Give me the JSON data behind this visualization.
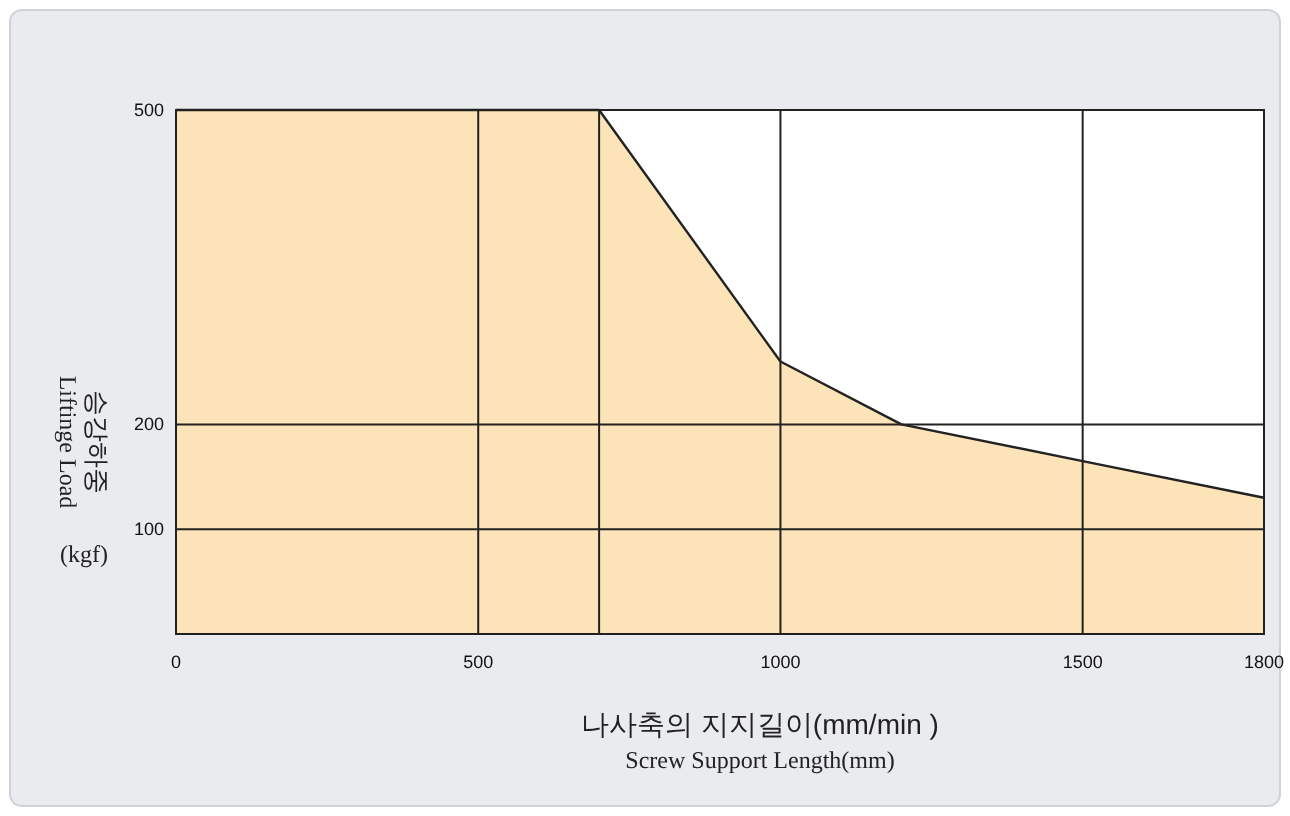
{
  "chart_data": {
    "type": "area",
    "xlabel": "나사축의 지지길이(mm/min )",
    "subtitle": "Screw Support Length(mm)",
    "ylabel": "승강하중",
    "y2label": "Liftinge Load",
    "legend_title": "(kgf)",
    "x": [
      0,
      700,
      1000,
      1200,
      1500,
      1800
    ],
    "series": [
      {
        "color": "#fde3b8",
        "values": [
          500,
          500,
          260,
          200,
          165,
          130
        ]
      }
    ],
    "xlim": [
      0,
      1800
    ],
    "ylim": [
      0,
      500
    ],
    "xticks": [
      0,
      500,
      1000,
      1500,
      1800
    ],
    "yticks": [
      100,
      200,
      500
    ],
    "ref_lines": [
      {
        "axis": "x",
        "value": 700,
        "color": "#222222"
      }
    ],
    "grid": true
  }
}
